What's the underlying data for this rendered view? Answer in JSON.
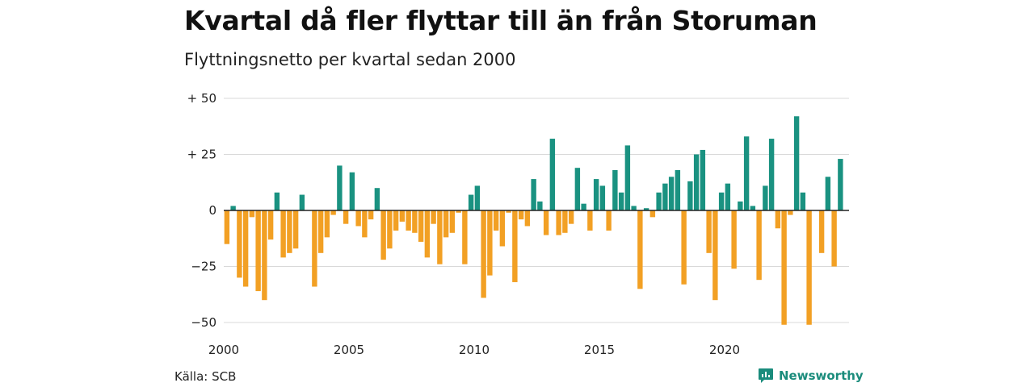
{
  "title": "Kvartal då fler flyttar till än från Storuman",
  "subtitle": "Flyttningsnetto per kvartal sedan 2000",
  "source": "Källa: SCB",
  "brand": "Newsworthy",
  "colors": {
    "positive": "#1a9281",
    "negative": "#f2a024",
    "gridline": "#d9d9d9",
    "zero_line": "#222222",
    "brand": "#1a8c7c"
  },
  "chart_data": {
    "type": "bar",
    "title": "Kvartal då fler flyttar till än från Storuman",
    "subtitle": "Flyttningsnetto per kvartal sedan 2000",
    "xlabel": "",
    "ylabel": "",
    "ylim": [
      -50,
      50
    ],
    "y_ticks": [
      {
        "value": 50,
        "label": "+ 50"
      },
      {
        "value": 25,
        "label": "+ 25"
      },
      {
        "value": 0,
        "label": "0"
      },
      {
        "value": -25,
        "label": "−25"
      },
      {
        "value": -50,
        "label": "−50"
      }
    ],
    "x_tick_labels": [
      {
        "year": 2000,
        "label": "2000"
      },
      {
        "year": 2005,
        "label": "2005"
      },
      {
        "year": 2010,
        "label": "2010"
      },
      {
        "year": 2015,
        "label": "2015"
      },
      {
        "year": 2020,
        "label": "2020"
      }
    ],
    "grid": true,
    "categories": [
      "2000 K1",
      "2000 K2",
      "2000 K3",
      "2000 K4",
      "2001 K1",
      "2001 K2",
      "2001 K3",
      "2001 K4",
      "2002 K1",
      "2002 K2",
      "2002 K3",
      "2002 K4",
      "2003 K1",
      "2003 K2",
      "2003 K3",
      "2003 K4",
      "2004 K1",
      "2004 K2",
      "2004 K3",
      "2004 K4",
      "2005 K1",
      "2005 K2",
      "2005 K3",
      "2005 K4",
      "2006 K1",
      "2006 K2",
      "2006 K3",
      "2006 K4",
      "2007 K1",
      "2007 K2",
      "2007 K3",
      "2007 K4",
      "2008 K1",
      "2008 K2",
      "2008 K3",
      "2008 K4",
      "2009 K1",
      "2009 K2",
      "2009 K3",
      "2009 K4",
      "2010 K1",
      "2010 K2",
      "2010 K3",
      "2010 K4",
      "2011 K1",
      "2011 K2",
      "2011 K3",
      "2011 K4",
      "2012 K1",
      "2012 K2",
      "2012 K3",
      "2012 K4",
      "2013 K1",
      "2013 K2",
      "2013 K3",
      "2013 K4",
      "2014 K1",
      "2014 K2",
      "2014 K3",
      "2014 K4",
      "2015 K1",
      "2015 K2",
      "2015 K3",
      "2015 K4",
      "2016 K1",
      "2016 K2",
      "2016 K3",
      "2016 K4",
      "2017 K1",
      "2017 K2",
      "2017 K3",
      "2017 K4",
      "2018 K1",
      "2018 K2",
      "2018 K3",
      "2018 K4",
      "2019 K1",
      "2019 K2",
      "2019 K3",
      "2019 K4",
      "2020 K1",
      "2020 K2",
      "2020 K3",
      "2020 K4",
      "2021 K1",
      "2021 K2",
      "2021 K3",
      "2021 K4",
      "2022 K1",
      "2022 K2",
      "2022 K3",
      "2022 K4",
      "2023 K1",
      "2023 K2",
      "2023 K3",
      "2023 K4",
      "2024 K1",
      "2024 K2",
      "2024 K3",
      "2024 K4"
    ],
    "values": [
      -15,
      2,
      -30,
      -34,
      -3,
      -36,
      -40,
      -13,
      8,
      -21,
      -19,
      -17,
      7,
      0,
      -34,
      -19,
      -12,
      -2,
      20,
      -6,
      17,
      -7,
      -12,
      -4,
      10,
      -22,
      -17,
      -9,
      -5,
      -9,
      -10,
      -14,
      -21,
      -6,
      -24,
      -12,
      -10,
      -1,
      -24,
      7,
      11,
      -39,
      -29,
      -9,
      -16,
      -1,
      -32,
      -4,
      -7,
      14,
      4,
      -11,
      32,
      -11,
      -10,
      -6,
      19,
      3,
      -9,
      14,
      11,
      -9,
      18,
      8,
      29,
      2,
      -35,
      1,
      -3,
      8,
      12,
      15,
      18,
      -33,
      13,
      25,
      27,
      -19,
      -40,
      8,
      12,
      -26,
      4,
      33,
      2,
      -31,
      11,
      32,
      -8,
      -51,
      -2,
      42,
      8,
      -51,
      0,
      -19,
      15,
      -25,
      23,
      0
    ]
  }
}
